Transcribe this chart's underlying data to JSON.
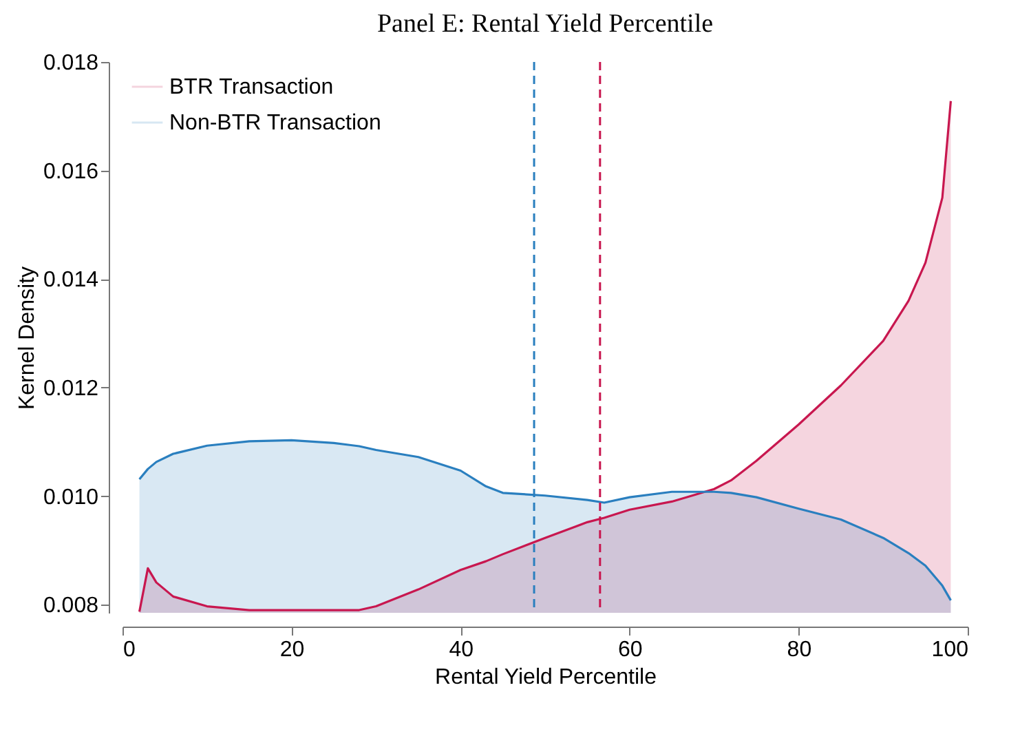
{
  "chart_data": {
    "type": "area",
    "title": "Panel E: Rental Yield Percentile",
    "xlabel": "Rental Yield Percentile",
    "ylabel": "Kernel Density",
    "x": [
      2,
      3,
      4,
      6,
      10,
      15,
      20,
      25,
      28,
      30,
      35,
      40,
      43,
      45,
      50,
      55,
      57,
      60,
      65,
      70,
      72,
      75,
      80,
      85,
      90,
      93,
      95,
      97,
      98
    ],
    "series": [
      {
        "name": "BTR Transaction",
        "color": "#c8174f",
        "values": [
          0.00787,
          0.00867,
          0.00841,
          0.00815,
          0.00797,
          0.0079,
          0.0079,
          0.0079,
          0.0079,
          0.00797,
          0.00828,
          0.00864,
          0.0088,
          0.00893,
          0.00923,
          0.00952,
          0.0096,
          0.00975,
          0.0099,
          0.01013,
          0.01029,
          0.01065,
          0.01132,
          0.01204,
          0.01286,
          0.0136,
          0.0143,
          0.0155,
          0.01728
        ]
      },
      {
        "name": "Non-BTR Transaction",
        "color": "#2a7fbf",
        "values": [
          0.01031,
          0.0105,
          0.01063,
          0.01078,
          0.01093,
          0.01101,
          0.01103,
          0.01098,
          0.01092,
          0.01085,
          0.01072,
          0.01047,
          0.01018,
          0.01006,
          0.01001,
          0.00993,
          0.00988,
          0.00998,
          0.01008,
          0.01008,
          0.01006,
          0.00998,
          0.00977,
          0.00957,
          0.00923,
          0.00895,
          0.00872,
          0.00835,
          0.00808
        ]
      }
    ],
    "xlim": [
      0,
      100
    ],
    "xticks": [
      0,
      20,
      40,
      60,
      80,
      100
    ],
    "ylim": [
      0.00785,
      0.018
    ],
    "yticks": [
      0.008,
      {
        "value": 0.01,
        "label": "0.010"
      },
      0.012,
      0.014,
      0.016,
      0.018
    ],
    "ref_lines": [
      {
        "axis": "x",
        "value": 48.7,
        "color": "#2a7fbf",
        "line_style": "dashed"
      },
      {
        "axis": "x",
        "value": 56.5,
        "color": "#c8174f",
        "line_style": "dashed"
      }
    ],
    "legend": "top left",
    "grid": false
  }
}
